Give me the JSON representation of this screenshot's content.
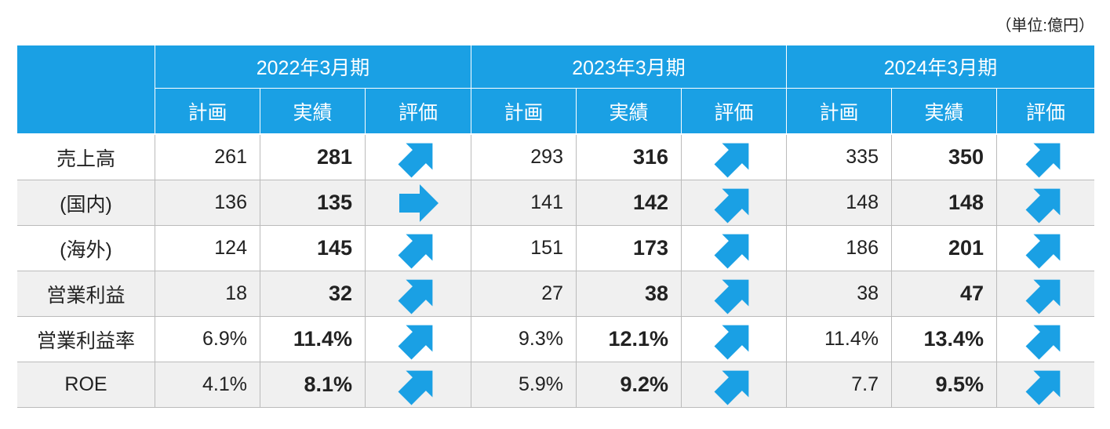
{
  "unit_note": "（単位:億円）",
  "table": {
    "years": [
      "2022年3月期",
      "2023年3月期",
      "2024年3月期"
    ],
    "subheaders": [
      "計画",
      "実績",
      "評価"
    ],
    "rows": [
      {
        "label": "売上高",
        "cells": [
          [
            "261",
            "281"
          ],
          [
            "293",
            "316"
          ],
          [
            "335",
            "350"
          ]
        ]
      },
      {
        "label": "(国内)",
        "cells": [
          [
            "136",
            "135"
          ],
          [
            "141",
            "142"
          ],
          [
            "148",
            "148"
          ]
        ]
      },
      {
        "label": "(海外)",
        "cells": [
          [
            "124",
            "145"
          ],
          [
            "151",
            "173"
          ],
          [
            "186",
            "201"
          ]
        ]
      },
      {
        "label": "営業利益",
        "cells": [
          [
            "18",
            "32"
          ],
          [
            "27",
            "38"
          ],
          [
            "38",
            "47"
          ]
        ]
      },
      {
        "label": "営業利益率",
        "cells": [
          [
            "6.9%",
            "11.4%"
          ],
          [
            "9.3%",
            "12.1%"
          ],
          [
            "11.4%",
            "13.4%"
          ]
        ]
      },
      {
        "label": "ROE",
        "cells": [
          [
            "4.1%",
            "8.1%"
          ],
          [
            "5.9%",
            "9.2%"
          ],
          [
            "7.7",
            "9.5%"
          ]
        ]
      }
    ]
  }
}
